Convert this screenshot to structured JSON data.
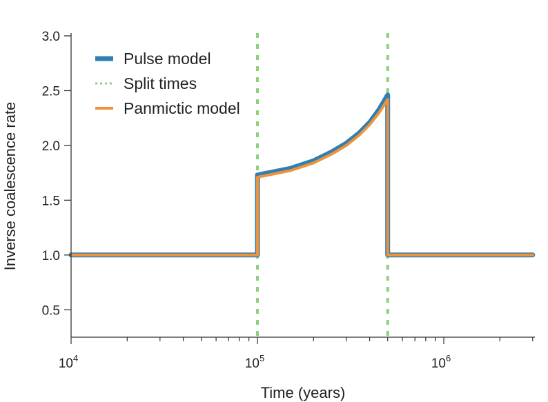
{
  "chart_data": {
    "type": "line",
    "xscale": "log",
    "xlim": [
      10000,
      3000000
    ],
    "ylim": [
      0.25,
      3.0
    ],
    "xlabel": "Time (years)",
    "ylabel": "Inverse coalescence rate",
    "yticks": [
      {
        "value": 0.5,
        "label": "0.5"
      },
      {
        "value": 1.0,
        "label": "1.0"
      },
      {
        "value": 1.5,
        "label": "1.5"
      },
      {
        "value": 2.0,
        "label": "2.0"
      },
      {
        "value": 2.5,
        "label": "2.5"
      },
      {
        "value": 3.0,
        "label": "3.0"
      }
    ],
    "xticks": [
      {
        "value": 10000,
        "base": "10",
        "exp": "4"
      },
      {
        "value": 100000,
        "base": "10",
        "exp": "5"
      },
      {
        "value": 1000000,
        "base": "10",
        "exp": "6"
      }
    ],
    "split_times": [
      100000,
      500000
    ],
    "legend_position": "top-left",
    "series": [
      {
        "name": "Pulse model",
        "color": "#2f7fb3",
        "style": "solid",
        "points": [
          [
            10000,
            1.0
          ],
          [
            100000,
            1.0
          ],
          [
            100000,
            1.73
          ],
          [
            150000,
            1.79
          ],
          [
            200000,
            1.86
          ],
          [
            250000,
            1.94
          ],
          [
            300000,
            2.02
          ],
          [
            350000,
            2.11
          ],
          [
            400000,
            2.21
          ],
          [
            450000,
            2.33
          ],
          [
            500000,
            2.46
          ],
          [
            500000,
            1.0
          ],
          [
            3000000,
            1.0
          ]
        ]
      },
      {
        "name": "Panmictic model",
        "color": "#f0923a",
        "style": "solid",
        "points": [
          [
            10000,
            1.0
          ],
          [
            100000,
            1.0
          ],
          [
            100000,
            1.71
          ],
          [
            150000,
            1.77
          ],
          [
            200000,
            1.84
          ],
          [
            250000,
            1.92
          ],
          [
            300000,
            2.0
          ],
          [
            350000,
            2.09
          ],
          [
            400000,
            2.19
          ],
          [
            450000,
            2.3
          ],
          [
            500000,
            2.42
          ],
          [
            500000,
            1.0
          ],
          [
            3000000,
            1.0
          ]
        ]
      }
    ],
    "legend": [
      {
        "label": "Pulse model",
        "color": "#2f7fb3",
        "style": "solid"
      },
      {
        "label": "Split times",
        "color": "#8fd07f",
        "style": "dotted"
      },
      {
        "label": "Panmictic model",
        "color": "#f0923a",
        "style": "solid"
      }
    ]
  }
}
